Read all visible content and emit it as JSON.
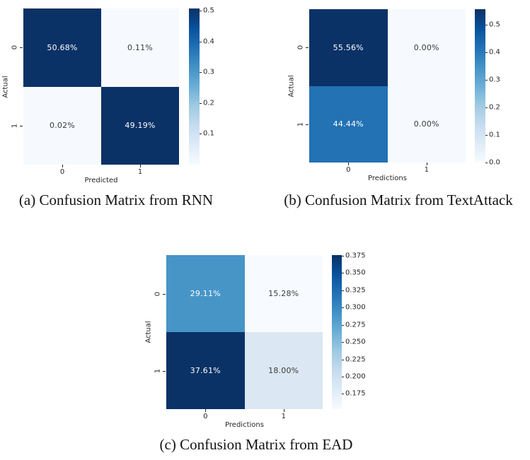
{
  "figure": {
    "background": "#ffffff",
    "captions": [
      {
        "id": "a",
        "text": "(a) Confusion Matrix from RNN"
      },
      {
        "id": "b",
        "text": "(b) Confusion Matrix from TextAttack"
      },
      {
        "id": "c",
        "text": "(c) Confusion Matrix from EAD"
      }
    ]
  },
  "colormap": {
    "name": "Blues",
    "stops_top_to_bottom": [
      "#0a3266",
      "#08519c",
      "#2171b5",
      "#4292c6",
      "#6baed6",
      "#9ecae1",
      "#c6dbef",
      "#deebf7",
      "#f7fbff"
    ]
  },
  "chart_data": [
    {
      "id": "a",
      "type": "heatmap",
      "caption": "(a) Confusion Matrix from RNN",
      "xlabel": "Predicted",
      "ylabel": "Actual",
      "x_ticklabels": [
        "0",
        "1"
      ],
      "y_ticklabels": [
        "0",
        "1"
      ],
      "cell_labels": [
        [
          "50.68%",
          "0.11%"
        ],
        [
          "0.02%",
          "49.19%"
        ]
      ],
      "cell_values": [
        [
          0.5068,
          0.0011
        ],
        [
          0.0002,
          0.4919
        ]
      ],
      "cell_colors": [
        [
          "#0a3266",
          "#f6fafe"
        ],
        [
          "#f6fafe",
          "#0a3266"
        ]
      ],
      "cell_text_colors": [
        [
          "#ffffff",
          "#3a3a3a"
        ],
        [
          "#3a3a3a",
          "#ffffff"
        ]
      ],
      "colorbar": {
        "vmin": 0.0002,
        "vmax": 0.5068,
        "ticks": [
          {
            "label": "0.5",
            "value": 0.5
          },
          {
            "label": "0.4",
            "value": 0.4
          },
          {
            "label": "0.3",
            "value": 0.3
          },
          {
            "label": "0.2",
            "value": 0.2
          },
          {
            "label": "0.1",
            "value": 0.1
          }
        ]
      }
    },
    {
      "id": "b",
      "type": "heatmap",
      "caption": "(b) Confusion Matrix from TextAttack",
      "xlabel": "Predictions",
      "ylabel": "Actual",
      "x_ticklabels": [
        "0",
        "1"
      ],
      "y_ticklabels": [
        "0",
        "1"
      ],
      "cell_labels": [
        [
          "55.56%",
          "0.00%"
        ],
        [
          "44.44%",
          "0.00%"
        ]
      ],
      "cell_values": [
        [
          0.5556,
          0.0
        ],
        [
          0.4444,
          0.0
        ]
      ],
      "cell_colors": [
        [
          "#0a3266",
          "#f6fafe"
        ],
        [
          "#2272b4",
          "#f6fafe"
        ]
      ],
      "cell_text_colors": [
        [
          "#ffffff",
          "#3a3a3a"
        ],
        [
          "#ffffff",
          "#3a3a3a"
        ]
      ],
      "colorbar": {
        "vmin": 0.0,
        "vmax": 0.5556,
        "ticks": [
          {
            "label": "0.5",
            "value": 0.5
          },
          {
            "label": "0.4",
            "value": 0.4
          },
          {
            "label": "0.3",
            "value": 0.3
          },
          {
            "label": "0.2",
            "value": 0.2
          },
          {
            "label": "0.1",
            "value": 0.1
          },
          {
            "label": "0.0",
            "value": 0.0
          }
        ]
      }
    },
    {
      "id": "c",
      "type": "heatmap",
      "caption": "(c) Confusion Matrix from EAD",
      "xlabel": "Predictions",
      "ylabel": "Actual",
      "x_ticklabels": [
        "0",
        "1"
      ],
      "y_ticklabels": [
        "0",
        "1"
      ],
      "cell_labels": [
        [
          "29.11%",
          "15.28%"
        ],
        [
          "37.61%",
          "18.00%"
        ]
      ],
      "cell_values": [
        [
          0.2911,
          0.1528
        ],
        [
          0.3761,
          0.18
        ]
      ],
      "cell_colors": [
        [
          "#4795c7",
          "#f7fbff"
        ],
        [
          "#0a3266",
          "#dbe7f3"
        ]
      ],
      "cell_text_colors": [
        [
          "#ffffff",
          "#3a3a3a"
        ],
        [
          "#ffffff",
          "#3a3a3a"
        ]
      ],
      "colorbar": {
        "vmin": 0.1528,
        "vmax": 0.3761,
        "ticks": [
          {
            "label": "0.375",
            "value": 0.375
          },
          {
            "label": "0.350",
            "value": 0.35
          },
          {
            "label": "0.325",
            "value": 0.325
          },
          {
            "label": "0.300",
            "value": 0.3
          },
          {
            "label": "0.275",
            "value": 0.275
          },
          {
            "label": "0.250",
            "value": 0.25
          },
          {
            "label": "0.225",
            "value": 0.225
          },
          {
            "label": "0.200",
            "value": 0.2
          },
          {
            "label": "0.175",
            "value": 0.175
          }
        ]
      }
    }
  ]
}
